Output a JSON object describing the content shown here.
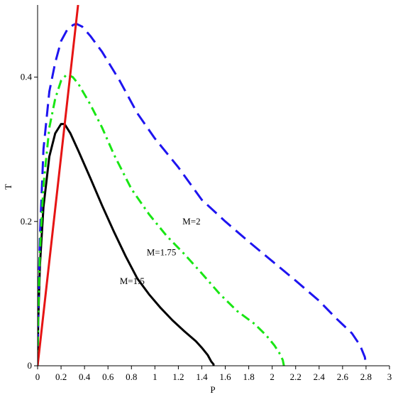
{
  "chart_data": {
    "type": "line",
    "title": "",
    "xlabel": "P",
    "ylabel": "T",
    "xlim": [
      0,
      3
    ],
    "ylim": [
      0,
      0.5
    ],
    "x_ticks": [
      0,
      0.2,
      0.4,
      0.6,
      0.8,
      1,
      1.2,
      1.4,
      1.6,
      1.8,
      2,
      2.2,
      2.4,
      2.6,
      2.8,
      3
    ],
    "x_tick_labels": [
      "0",
      "0.2",
      "0.4",
      "0.6",
      "0.8",
      "1",
      "1.2",
      "1.4",
      "1.6",
      "1.8",
      "2",
      "2.2",
      "2.4",
      "2.6",
      "2.8",
      "3"
    ],
    "y_ticks": [
      0,
      0.2,
      0.4
    ],
    "y_tick_labels": [
      "0",
      "0.2",
      "0.4"
    ],
    "grid": false,
    "legend": "none",
    "annotations": [
      {
        "text": "M=2",
        "x": 1.235,
        "y": 0.2
      },
      {
        "text": "M=1.75",
        "x": 0.93,
        "y": 0.157
      },
      {
        "text": "M=1.5",
        "x": 0.7,
        "y": 0.117
      }
    ],
    "series": [
      {
        "color": "#000000",
        "style": "solid",
        "x": [
          0,
          0.005,
          0.02,
          0.05,
          0.1,
          0.15,
          0.2,
          0.23,
          0.28,
          0.35,
          0.45,
          0.55,
          0.65,
          0.75,
          0.85,
          0.95,
          1.05,
          1.15,
          1.25,
          1.35,
          1.4,
          1.45,
          1.48,
          1.5,
          1.5
        ],
        "y": [
          0,
          0.06,
          0.14,
          0.22,
          0.29,
          0.322,
          0.335,
          0.335,
          0.322,
          0.297,
          0.26,
          0.222,
          0.186,
          0.152,
          0.121,
          0.099,
          0.08,
          0.063,
          0.048,
          0.034,
          0.025,
          0.015,
          0.006,
          0.002,
          0
        ]
      },
      {
        "color": "#1e14f0",
        "style": "dashed",
        "x": [
          0,
          0.005,
          0.02,
          0.05,
          0.1,
          0.15,
          0.2,
          0.25,
          0.3,
          0.33,
          0.38,
          0.45,
          0.55,
          0.7,
          0.85,
          1,
          1.2,
          1.4,
          1.6,
          1.8,
          2,
          2.2,
          2.4,
          2.55,
          2.68,
          2.75,
          2.79,
          2.8
        ],
        "y": [
          0,
          0.08,
          0.18,
          0.3,
          0.38,
          0.42,
          0.45,
          0.465,
          0.472,
          0.474,
          0.47,
          0.457,
          0.435,
          0.395,
          0.35,
          0.315,
          0.275,
          0.23,
          0.2,
          0.172,
          0.145,
          0.118,
          0.09,
          0.065,
          0.045,
          0.028,
          0.012,
          0
        ]
      },
      {
        "color": "#19e614",
        "style": "dashdot",
        "x": [
          0,
          0.005,
          0.02,
          0.05,
          0.1,
          0.15,
          0.2,
          0.25,
          0.3,
          0.35,
          0.45,
          0.55,
          0.65,
          0.8,
          0.95,
          1.1,
          1.25,
          1.4,
          1.55,
          1.7,
          1.85,
          1.95,
          2.02,
          2.06,
          2.09,
          2.1
        ],
        "y": [
          0,
          0.07,
          0.16,
          0.25,
          0.33,
          0.37,
          0.395,
          0.404,
          0.4,
          0.39,
          0.362,
          0.33,
          0.293,
          0.245,
          0.21,
          0.18,
          0.155,
          0.128,
          0.1,
          0.076,
          0.058,
          0.042,
          0.028,
          0.018,
          0.008,
          0
        ]
      },
      {
        "color": "#e61414",
        "style": "solid",
        "x": [
          0,
          0.345
        ],
        "y": [
          0,
          0.5
        ]
      }
    ]
  }
}
